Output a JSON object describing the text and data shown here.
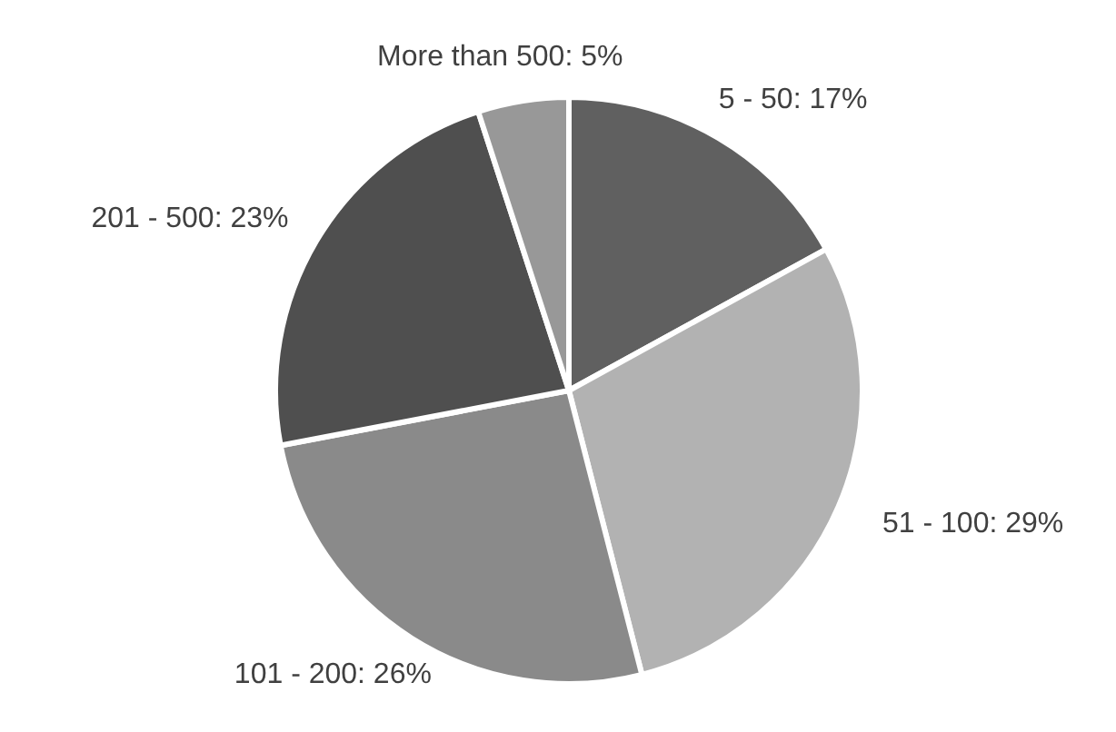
{
  "chart_data": {
    "type": "pie",
    "categories": [
      "5 - 50",
      "51 - 100",
      "101 - 200",
      "201 - 500",
      "More than 500"
    ],
    "values": [
      17,
      29,
      26,
      23,
      5
    ],
    "value_labels": [
      "17%",
      "29%",
      "26%",
      "23%",
      "5%"
    ],
    "colors": [
      "#606060",
      "#b2b2b2",
      "#8a8a8a",
      "#4f4f4f",
      "#989898"
    ]
  }
}
